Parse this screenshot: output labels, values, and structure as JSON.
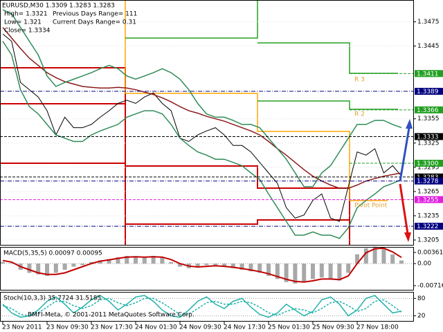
{
  "chart_data": [
    {
      "type": "line",
      "title": "EURUSD,M30  1.3309 1.3283 1.3283",
      "info": [
        "High= 1.3321",
        "Previous Days Range= 111",
        "Low= 1.321",
        "Current Days Range= 0.31",
        "Close= 1.3334"
      ],
      "annotations": [
        "R 3",
        "R 2",
        "Pivot Point"
      ],
      "categories": [
        "23 Nov 2011",
        null,
        null,
        null,
        null,
        "23 Nov 09:30",
        null,
        null,
        null,
        null,
        "23 Nov 17:30",
        null,
        null,
        null,
        null,
        "24 Nov 01:30",
        null,
        null,
        null,
        null,
        "24 Nov 09:30",
        null,
        null,
        null,
        null,
        "24 Nov 17:30",
        null,
        null,
        null,
        null,
        "25 Nov 01:30",
        null,
        null,
        null,
        null,
        "25 Nov 09:30",
        null,
        null,
        null,
        null,
        "27 Nov 18:00",
        null,
        null,
        null,
        null,
        null
      ],
      "series": [
        {
          "color": "#000000",
          "values": [
            1.346,
            1.3451,
            1.34,
            1.3391,
            1.3382,
            1.3365,
            1.3335,
            1.3357,
            1.3344,
            1.3344,
            1.3348,
            1.3357,
            1.3365,
            1.3374,
            1.3378,
            1.3374,
            1.3382,
            1.3387,
            1.3374,
            1.3365,
            1.3331,
            1.3327,
            1.3335,
            1.334,
            1.3344,
            1.3335,
            1.3322,
            1.3322,
            1.3314,
            1.3301,
            1.3288,
            1.3275,
            1.3245,
            1.3232,
            1.3236,
            1.3254,
            1.3262,
            1.3232,
            1.3228,
            1.3271,
            1.3314,
            1.331,
            1.3318,
            1.3288,
            1.3297,
            1.3284
          ]
        },
        {
          "color": "#8b1a1a",
          "values": [
            1.3468,
            1.3455,
            1.3442,
            1.343,
            1.3421,
            1.3412,
            1.3406,
            1.3401,
            1.3398,
            1.3395,
            1.3394,
            1.3393,
            1.3393,
            1.3394,
            1.3393,
            1.3391,
            1.3388,
            1.3385,
            1.3381,
            1.3376,
            1.337,
            1.3365,
            1.3362,
            1.3358,
            1.3355,
            1.3352,
            1.3348,
            1.3344,
            1.334,
            1.3335,
            1.3327,
            1.3318,
            1.331,
            1.3301,
            1.3292,
            1.3284,
            1.3278,
            1.3273,
            1.3269,
            1.3269,
            1.3273,
            1.3278,
            1.3281,
            1.3284,
            1.3286,
            1.3288
          ]
        },
        {
          "color": "#2e8b57",
          "values": [
            1.349,
            1.3485,
            1.3468,
            1.3451,
            1.3434,
            1.3408,
            1.3395,
            1.34,
            1.3404,
            1.3408,
            1.3412,
            1.3417,
            1.3421,
            1.3417,
            1.3408,
            1.3404,
            1.3408,
            1.3412,
            1.3417,
            1.3412,
            1.3404,
            1.3391,
            1.3374,
            1.3361,
            1.3357,
            1.3357,
            1.3353,
            1.3348,
            1.3348,
            1.3344,
            1.3331,
            1.3318,
            1.3305,
            1.3288,
            1.3271,
            1.3271,
            1.3288,
            1.3297,
            1.3314,
            1.3331,
            1.3348,
            1.3348,
            1.3353,
            1.3353,
            1.3348,
            1.3344
          ]
        },
        {
          "color": "#2e8b57",
          "values": [
            1.3451,
            1.3434,
            1.3391,
            1.337,
            1.3361,
            1.3348,
            1.3335,
            1.3331,
            1.3327,
            1.3327,
            1.3335,
            1.334,
            1.3344,
            1.3348,
            1.3357,
            1.3361,
            1.3365,
            1.3365,
            1.3361,
            1.3348,
            1.3331,
            1.3322,
            1.3314,
            1.331,
            1.3305,
            1.3305,
            1.3301,
            1.3297,
            1.3288,
            1.328,
            1.3262,
            1.3245,
            1.3228,
            1.3211,
            1.3211,
            1.3215,
            1.3211,
            1.3211,
            1.3207,
            1.322,
            1.3245,
            1.3254,
            1.3262,
            1.3271,
            1.3275,
            1.328
          ]
        }
      ],
      "ylim": [
        1.3199,
        1.3502
      ],
      "yticks": [
        1.3475,
        1.3445,
        1.3355,
        1.3325,
        1.3295,
        1.3265,
        1.3235,
        1.3205
      ],
      "levels": [
        {
          "value": 1.3411,
          "color": "#22a022"
        },
        {
          "value": 1.3389,
          "color": "#000080"
        },
        {
          "value": 1.3366,
          "color": "#22a022"
        },
        {
          "value": 1.3333,
          "color": "#000000"
        },
        {
          "value": 1.33,
          "label": "1.3300",
          "color": "#22a022"
        },
        {
          "value": 1.3283,
          "color": "#000000"
        },
        {
          "value": 1.3278,
          "color": "#000080"
        },
        {
          "value": 1.3255,
          "color": "#e020e0"
        },
        {
          "value": 1.3222,
          "color": "#000080"
        }
      ]
    },
    {
      "type": "bar",
      "title": "MACD(5,35,5) 0.00097 0.00095",
      "color": "#a8a8a8",
      "values": [
        0.0005,
        0.0002,
        -0.002,
        -0.003,
        -0.0035,
        -0.004,
        -0.003,
        -0.002,
        -0.001,
        -0.0005,
        0.0005,
        0.001,
        0.0015,
        0.002,
        0.0025,
        0.002,
        0.002,
        0.0025,
        0.002,
        0.0005,
        -0.001,
        -0.0015,
        -0.001,
        -0.0005,
        -0.0005,
        -0.001,
        -0.0015,
        -0.002,
        -0.0025,
        -0.003,
        -0.004,
        -0.005,
        -0.006,
        -0.0065,
        -0.006,
        -0.005,
        -0.0045,
        -0.005,
        -0.0055,
        -0.003,
        0.003,
        0.005,
        0.0055,
        0.005,
        0.003,
        0.001
      ],
      "signal": {
        "color": "#c00000",
        "values": [
          0.001,
          0.0005,
          -0.001,
          -0.002,
          -0.003,
          -0.0035,
          -0.0035,
          -0.003,
          -0.002,
          -0.001,
          0,
          0.0008,
          0.0012,
          0.0017,
          0.0021,
          0.0022,
          0.0021,
          0.0022,
          0.0021,
          0.0013,
          0,
          -0.0008,
          -0.0011,
          -0.0009,
          -0.0007,
          -0.0009,
          -0.0012,
          -0.0016,
          -0.0021,
          -0.0026,
          -0.0033,
          -0.0042,
          -0.0051,
          -0.0058,
          -0.006,
          -0.0056,
          -0.005,
          -0.005,
          -0.0052,
          -0.004,
          0,
          0.0035,
          0.0048,
          0.005,
          0.0038,
          0.002
        ]
      },
      "ylim": [
        -0.00873,
        0.00518
      ],
      "yticks": [
        0.00361,
        {
          "value": 0,
          "label": "0.00"
        },
        -0.00716
      ]
    },
    {
      "type": "line",
      "title": "Stoch(10,3,3) 35.7724 31.5185",
      "footer": "BMFI-Meta, © 2001-2011 MetaQuotes Software Corp.",
      "series": [
        {
          "color": "#20b2aa",
          "values": [
            60,
            30,
            15,
            20,
            40,
            70,
            85,
            60,
            30,
            50,
            75,
            90,
            70,
            40,
            60,
            85,
            90,
            70,
            40,
            20,
            15,
            40,
            70,
            85,
            60,
            45,
            70,
            80,
            50,
            25,
            15,
            30,
            60,
            40,
            20,
            35,
            75,
            85,
            60,
            20,
            40,
            80,
            90,
            60,
            30,
            36
          ]
        },
        {
          "color": "#20b2aa",
          "dashed": true,
          "values": [
            55,
            45,
            25,
            20,
            30,
            50,
            70,
            70,
            55,
            45,
            55,
            75,
            80,
            65,
            55,
            65,
            80,
            80,
            65,
            45,
            25,
            25,
            45,
            65,
            70,
            60,
            60,
            70,
            65,
            50,
            30,
            22,
            35,
            45,
            40,
            30,
            45,
            65,
            70,
            55,
            35,
            45,
            70,
            75,
            55,
            32
          ]
        }
      ],
      "ylim": [
        0,
        100
      ],
      "yticks": [
        80,
        20
      ]
    }
  ]
}
